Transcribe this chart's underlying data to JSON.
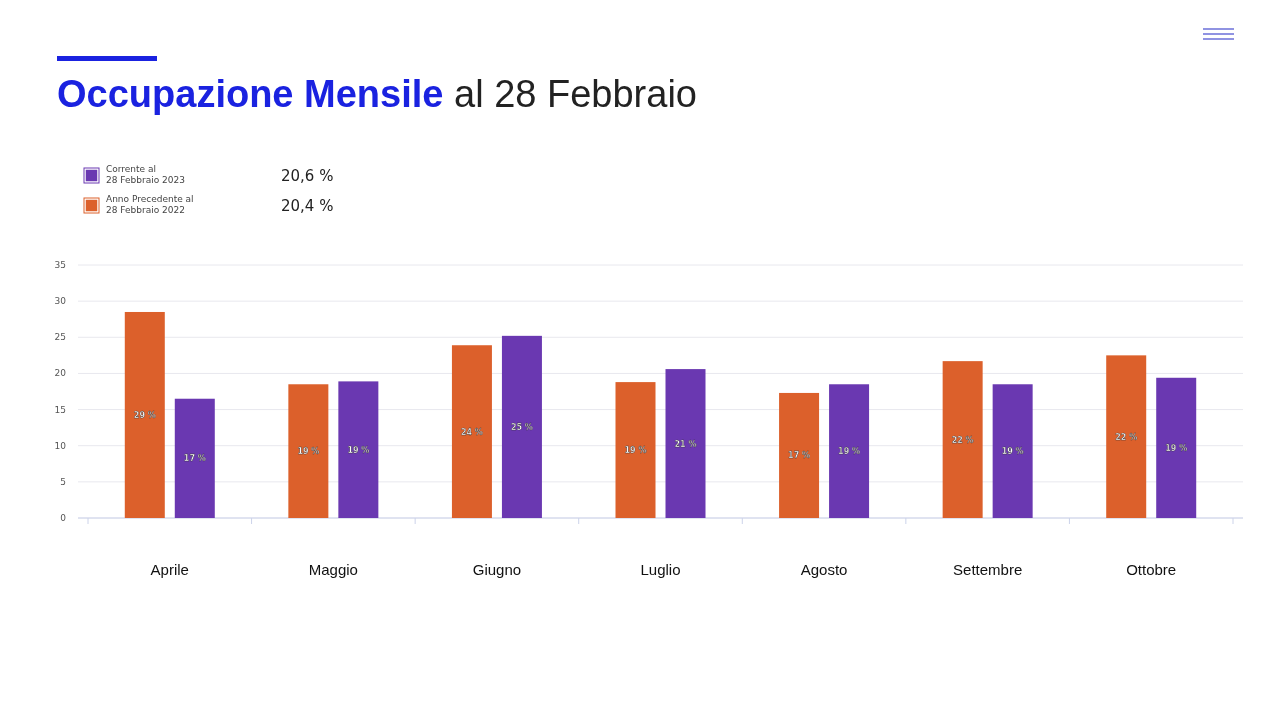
{
  "chart_data": {
    "type": "bar",
    "title": "Occupazione Mensile",
    "subtitle": "al 28 Febbraio",
    "categories": [
      "Aprile",
      "Maggio",
      "Giugno",
      "Luglio",
      "Agosto",
      "Settembre",
      "Ottobre"
    ],
    "series": [
      {
        "name": "Anno Precedente al 28 Febbraio 2022",
        "color": "#dc602b",
        "values": [
          28.5,
          18.5,
          23.9,
          18.8,
          17.3,
          21.7,
          22.5
        ],
        "value_labels": [
          "29 %",
          "19 %",
          "24 %",
          "19 %",
          "17 %",
          "22 %",
          "22 %"
        ]
      },
      {
        "name": "Corrente al 28 Febbraio 2023",
        "color": "#6a38b1",
        "values": [
          16.5,
          18.9,
          25.2,
          20.6,
          18.5,
          18.5,
          19.4
        ],
        "value_labels": [
          "17 %",
          "19 %",
          "25 %",
          "21 %",
          "19 %",
          "19 %",
          "19 %"
        ]
      }
    ],
    "ylim": [
      0,
      35
    ],
    "yticks": [
      0,
      5,
      10,
      15,
      20,
      25,
      30,
      35
    ],
    "grid": "y",
    "legend": "top left",
    "annotations": [
      "20,4 %",
      "20,6 %"
    ]
  }
}
